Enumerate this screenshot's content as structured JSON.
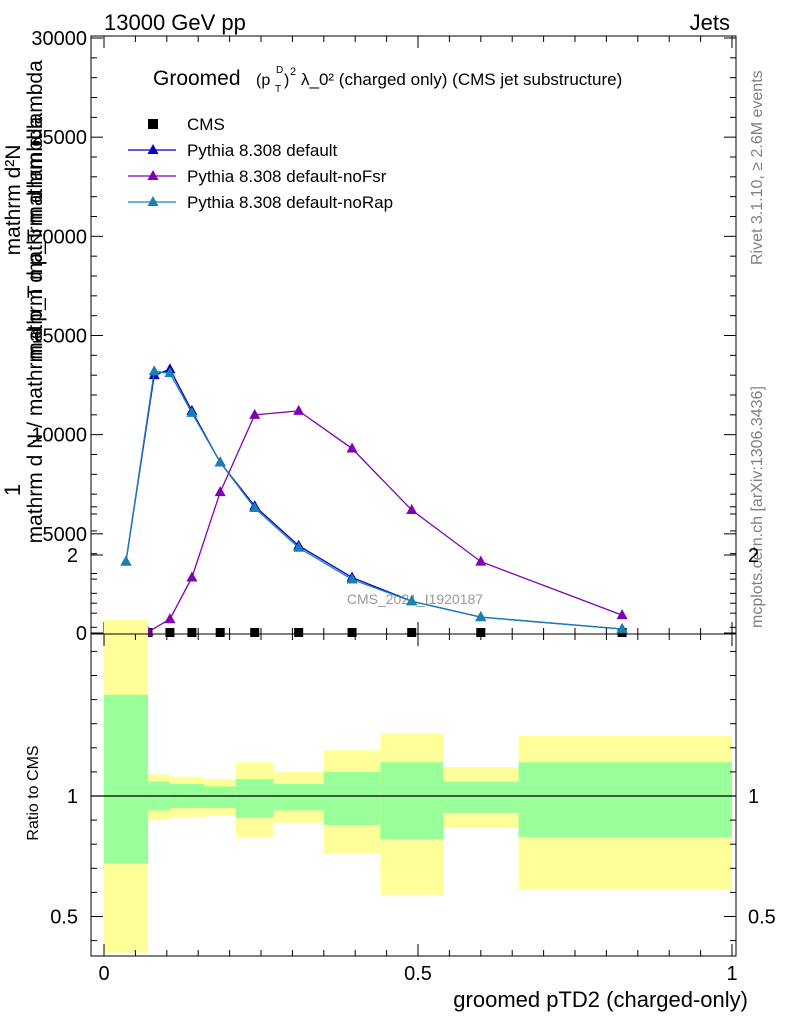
{
  "header": {
    "left": "13000 GeV pp",
    "right": "Jets"
  },
  "side_labels": {
    "rivet": "Rivet 3.1.10, ≥ 2.6M events",
    "mcplots": "mcplots.cern.ch [arXiv:1306.3436]"
  },
  "title": {
    "main": "Groomed",
    "rest": "λ_0²  (charged only) (CMS jet substructure)",
    "sym_p": "(p",
    "sym_D": "D",
    "sym_T": "T",
    "sym_close": ")",
    "sym_sq": "2",
    "sym_sq2": "2"
  },
  "watermark": "CMS_2021_I1920187",
  "colors": {
    "cms": "#000000",
    "default": "#0000cc",
    "noFsr": "#8000b3",
    "noRap": "#1a80b3",
    "band_outer": "#ffff99",
    "band_inner": "#99ff99"
  },
  "chart_data": [
    {
      "type": "line",
      "title": "",
      "xlim": [
        -0.02,
        1.0
      ],
      "ylim": [
        0,
        30000
      ],
      "yticks": [
        0,
        5000,
        10000,
        15000,
        20000,
        25000,
        30000
      ],
      "ytick_labels": [
        "0",
        "5000",
        "10000",
        "15000",
        "20000",
        "25000",
        "30000"
      ],
      "ylabel_parts": [
        "1",
        "mathrm d N / mathrm d p_T mathrm d lambda",
        "mathrm d²N",
        "mathrm d p_T mathrm d lambda"
      ],
      "legend": [
        "CMS",
        "Pythia 8.308 default",
        "Pythia 8.308 default-noFsr",
        "Pythia 8.308 default-noRap"
      ],
      "legend_position": "top-left",
      "series": [
        {
          "name": "CMS",
          "marker": "square",
          "x": [
            0.035,
            0.07,
            0.105,
            0.14,
            0.185,
            0.24,
            0.31,
            0.395,
            0.49,
            0.6,
            0.825
          ],
          "y": [
            0,
            0,
            0,
            0,
            0,
            0,
            0,
            0,
            0,
            0,
            0
          ]
        },
        {
          "name": "Pythia 8.308 default",
          "marker": "triangle",
          "x": [
            0.035,
            0.08,
            0.105,
            0.14,
            0.185,
            0.24,
            0.31,
            0.395,
            0.49,
            0.6,
            0.825
          ],
          "y": [
            3600,
            13000,
            13300,
            11200,
            8600,
            6400,
            4400,
            2800,
            1600,
            800,
            200
          ]
        },
        {
          "name": "Pythia 8.308 default-noFsr",
          "marker": "triangle",
          "x": [
            0.035,
            0.07,
            0.105,
            0.14,
            0.185,
            0.24,
            0.31,
            0.395,
            0.49,
            0.6,
            0.825
          ],
          "y": [
            0,
            50,
            700,
            2800,
            7100,
            11000,
            11200,
            9300,
            6200,
            3600,
            900
          ]
        },
        {
          "name": "Pythia 8.308 default-noRap",
          "marker": "triangle",
          "x": [
            0.035,
            0.08,
            0.105,
            0.14,
            0.185,
            0.24,
            0.31,
            0.395,
            0.49,
            0.6,
            0.825
          ],
          "y": [
            3600,
            13200,
            13100,
            11100,
            8600,
            6300,
            4300,
            2700,
            1600,
            800,
            200
          ]
        }
      ]
    },
    {
      "type": "area",
      "title": "",
      "xlabel": "groomed pTD2 (charged-only)",
      "ylabel": "Ratio to CMS",
      "xlim": [
        -0.02,
        1.0
      ],
      "ylim": [
        0.35,
        2.3
      ],
      "xticks": [
        0,
        0.5,
        1
      ],
      "xtick_labels": [
        "0",
        "0.5",
        "1"
      ],
      "yticks": [
        0.5,
        1,
        2
      ],
      "ytick_labels": [
        "0.5",
        "1",
        "2"
      ],
      "reference_line": 1,
      "bins": [
        {
          "lo": 0.0,
          "hi": 0.07,
          "outer": [
            0.35,
            1.73
          ],
          "inner": [
            0.72,
            1.42
          ]
        },
        {
          "lo": 0.07,
          "hi": 0.105,
          "outer": [
            0.9,
            1.09
          ],
          "inner": [
            0.94,
            1.06
          ]
        },
        {
          "lo": 0.105,
          "hi": 0.16,
          "outer": [
            0.91,
            1.08
          ],
          "inner": [
            0.95,
            1.05
          ]
        },
        {
          "lo": 0.16,
          "hi": 0.21,
          "outer": [
            0.92,
            1.07
          ],
          "inner": [
            0.95,
            1.04
          ]
        },
        {
          "lo": 0.21,
          "hi": 0.27,
          "outer": [
            0.83,
            1.14
          ],
          "inner": [
            0.91,
            1.07
          ]
        },
        {
          "lo": 0.27,
          "hi": 0.35,
          "outer": [
            0.89,
            1.1
          ],
          "inner": [
            0.94,
            1.05
          ]
        },
        {
          "lo": 0.35,
          "hi": 0.44,
          "outer": [
            0.76,
            1.19
          ],
          "inner": [
            0.88,
            1.1
          ]
        },
        {
          "lo": 0.44,
          "hi": 0.54,
          "outer": [
            0.59,
            1.26
          ],
          "inner": [
            0.82,
            1.14
          ]
        },
        {
          "lo": 0.54,
          "hi": 0.66,
          "outer": [
            0.87,
            1.12
          ],
          "inner": [
            0.93,
            1.06
          ]
        },
        {
          "lo": 0.66,
          "hi": 1.0,
          "outer": [
            0.61,
            1.25
          ],
          "inner": [
            0.83,
            1.14
          ]
        }
      ]
    }
  ]
}
